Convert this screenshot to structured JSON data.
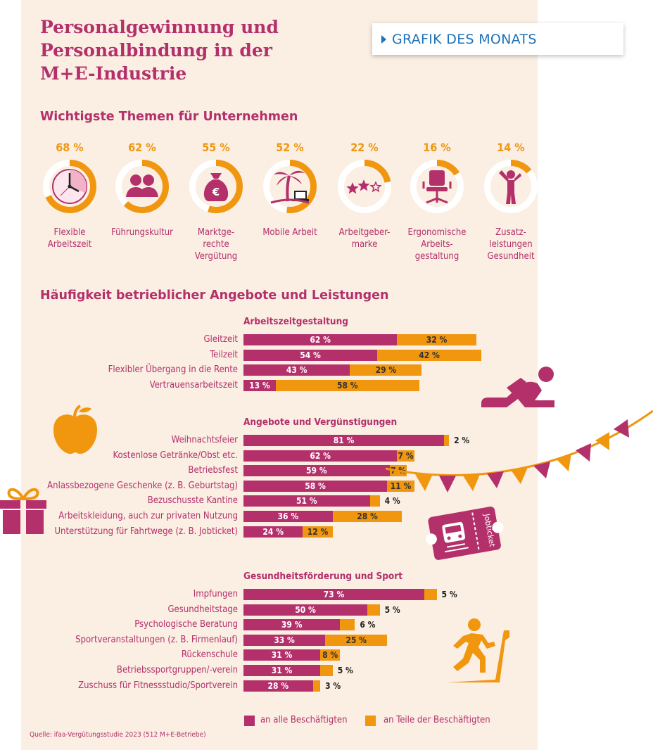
{
  "title_lines": [
    "Personalgewinnung und",
    "Personalbindung in der",
    "M+E-Industrie"
  ],
  "badge": {
    "text": "GRAFIK DES MONATS",
    "icon": "triangle-right-icon"
  },
  "colors": {
    "magenta": "#b3306b",
    "orange": "#f0960f",
    "background": "#fbeee2",
    "badge_blue": "#1c72b8"
  },
  "section1_title": "Wichtigste Themen für Unternehmen",
  "section2_title": "Häufigkeit betrieblicher Angebote und Leistungen",
  "source": "Quelle: ifaa-Vergütungsstudie 2023 (512 M+E-Betriebe)",
  "chart_data": [
    {
      "type": "donut",
      "title": "Wichtigste Themen für Unternehmen",
      "unit": "%",
      "items": [
        {
          "value": 68,
          "label": "68 %",
          "name": [
            "Flexible",
            "Arbeitszeit"
          ],
          "icon": "clock-icon"
        },
        {
          "value": 62,
          "label": "62 %",
          "name": [
            "Führungskultur"
          ],
          "icon": "people-icon"
        },
        {
          "value": 55,
          "label": "55 %",
          "name": [
            "Marktge-",
            "rechte",
            "Vergütung"
          ],
          "icon": "money-bag-icon"
        },
        {
          "value": 52,
          "label": "52 %",
          "name": [
            "Mobile Arbeit"
          ],
          "icon": "palm-laptop-icon"
        },
        {
          "value": 22,
          "label": "22 %",
          "name": [
            "Arbeitgeber-",
            "marke"
          ],
          "icon": "stars-icon"
        },
        {
          "value": 16,
          "label": "16 %",
          "name": [
            "Ergonomische",
            "Arbeits-",
            "gestaltung"
          ],
          "icon": "office-chair-icon"
        },
        {
          "value": 14,
          "label": "14 %",
          "name": [
            "Zusatz-",
            "leistungen",
            "Gesundheit"
          ],
          "icon": "stretching-person-icon"
        }
      ]
    },
    {
      "type": "bar",
      "orientation": "horizontal",
      "stacked": true,
      "title": "Häufigkeit betrieblicher Angebote und Leistungen",
      "series": [
        {
          "name": "an alle Beschäftigten",
          "color": "#b3306b"
        },
        {
          "name": "an Teile der Beschäftigten",
          "color": "#f0960f"
        }
      ],
      "groups": [
        {
          "title": "Arbeitszeitgestaltung",
          "rows": [
            {
              "label": "Gleitzeit",
              "all": 62,
              "part": 32,
              "all_label": "62 %",
              "part_label": "32 %"
            },
            {
              "label": "Teilzeit",
              "all": 54,
              "part": 42,
              "all_label": "54 %",
              "part_label": "42 %"
            },
            {
              "label": "Flexibler Übergang in die Rente",
              "all": 43,
              "part": 29,
              "all_label": "43 %",
              "part_label": "29 %"
            },
            {
              "label": "Vertrauensarbeitszeit",
              "all": 13,
              "part": 58,
              "all_label": "13 %",
              "part_label": "58 %"
            }
          ]
        },
        {
          "title": "Angebote und Vergünstigungen",
          "rows": [
            {
              "label": "Weihnachtsfeier",
              "all": 81,
              "part": 2,
              "all_label": "81 %",
              "part_label": "2 %"
            },
            {
              "label": "Kostenlose Getränke/Obst etc.",
              "all": 62,
              "part": 7,
              "all_label": "62 %",
              "part_label": "7 %"
            },
            {
              "label": "Betriebsfest",
              "all": 59,
              "part": 7,
              "all_label": "59 %",
              "part_label": "7 %"
            },
            {
              "label": "Anlassbezogene Geschenke (z. B. Geburtstag)",
              "all": 58,
              "part": 11,
              "all_label": "58 %",
              "part_label": "11 %"
            },
            {
              "label": "Bezuschusste Kantine",
              "all": 51,
              "part": 4,
              "all_label": "51 %",
              "part_label": "4 %"
            },
            {
              "label": "Arbeitskleidung, auch zur privaten Nutzung",
              "all": 36,
              "part": 28,
              "all_label": "36 %",
              "part_label": "28 %"
            },
            {
              "label": "Unterstützung für Fahrtwege (z. B. Jobticket)",
              "all": 24,
              "part": 12,
              "all_label": "24 %",
              "part_label": "12 %"
            }
          ]
        },
        {
          "title": "Gesundheitsförderung und Sport",
          "rows": [
            {
              "label": "Impfungen",
              "all": 73,
              "part": 5,
              "all_label": "73 %",
              "part_label": "5 %"
            },
            {
              "label": "Gesundheitstage",
              "all": 50,
              "part": 5,
              "all_label": "50 %",
              "part_label": "5 %"
            },
            {
              "label": "Psychologische Beratung",
              "all": 39,
              "part": 6,
              "all_label": "39 %",
              "part_label": "6 %"
            },
            {
              "label": "Sportveranstaltungen (z. B. Firmenlauf)",
              "all": 33,
              "part": 25,
              "all_label": "33 %",
              "part_label": "25 %"
            },
            {
              "label": "Rückenschule",
              "all": 31,
              "part": 8,
              "all_label": "31 %",
              "part_label": "8 %"
            },
            {
              "label": "Betriebssportgruppen/-verein",
              "all": 31,
              "part": 5,
              "all_label": "31 %",
              "part_label": "5 %"
            },
            {
              "label": "Zuschuss für Fitnessstudio/Sportverein",
              "all": 28,
              "part": 3,
              "all_label": "28 %",
              "part_label": "3 %"
            }
          ]
        }
      ]
    }
  ],
  "decorations": {
    "icons": [
      "reclining-person-icon",
      "apple-icon",
      "bunting-icon",
      "gift-icon",
      "jobticket-icon",
      "treadmill-runner-icon"
    ],
    "jobticket_text": "Jobticket"
  }
}
